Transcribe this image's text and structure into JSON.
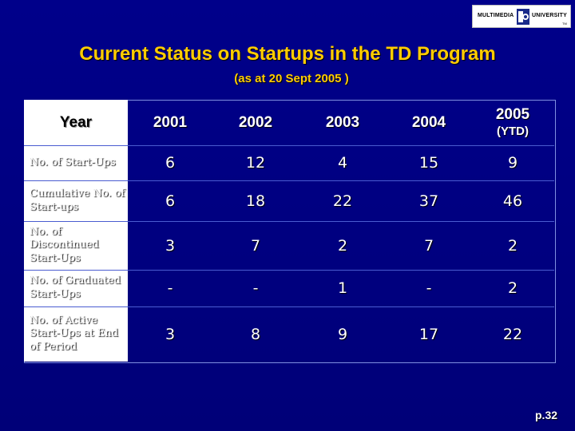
{
  "logo": {
    "left_text": "MULTIMEDIA",
    "right_text": "UNIVERSITY",
    "tm": "TM"
  },
  "title": "Current Status on Startups in the TD Program",
  "subtitle": "(as at 20 Sept 2005 )",
  "table": {
    "corner_label": "Year",
    "years": [
      "2001",
      "2002",
      "2003",
      "2004",
      "2005"
    ],
    "last_year_note": "(YTD)",
    "rows": [
      {
        "label": "No. of Start-Ups",
        "values": [
          "6",
          "12",
          "4",
          "15",
          "9"
        ]
      },
      {
        "label": "Cumulative No. of Start-ups",
        "values": [
          "6",
          "18",
          "22",
          "37",
          "46"
        ]
      },
      {
        "label": "No. of Discontinued Start-Ups",
        "values": [
          "3",
          "7",
          "2",
          "7",
          "2"
        ]
      },
      {
        "label": "No. of Graduated Start-Ups",
        "values": [
          "-",
          "-",
          "1",
          "-",
          "2"
        ]
      },
      {
        "label": "No. of Active Start-Ups at End of Period",
        "values": [
          "3",
          "8",
          "9",
          "17",
          "22"
        ]
      }
    ]
  },
  "page_number": "p.32",
  "colors": {
    "background": "#00007a",
    "title": "#ffcc00",
    "text": "#ffffff"
  }
}
